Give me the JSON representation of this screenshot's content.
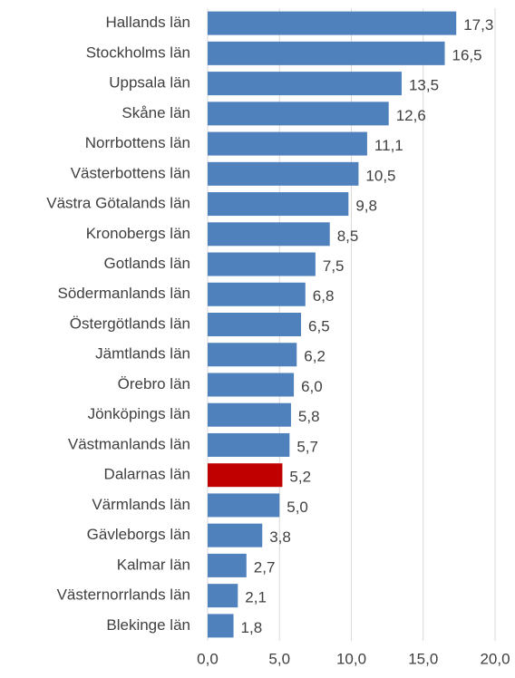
{
  "chart_data": {
    "type": "barh",
    "categories": [
      "Hallands län",
      "Stockholms län",
      "Uppsala län",
      "Skåne län",
      "Norrbottens län",
      "Västerbottens län",
      "Västra Götalands län",
      "Kronobergs län",
      "Gotlands län",
      "Södermanlands län",
      "Östergötlands län",
      "Jämtlands län",
      "Örebro län",
      "Jönköpings län",
      "Västmanlands län",
      "Dalarnas län",
      "Värmlands län",
      "Gävleborgs län",
      "Kalmar län",
      "Västernorrlands län",
      "Blekinge län"
    ],
    "values": [
      17.3,
      16.5,
      13.5,
      12.6,
      11.1,
      10.5,
      9.8,
      8.5,
      7.5,
      6.8,
      6.5,
      6.2,
      6.0,
      5.8,
      5.7,
      5.2,
      5.0,
      3.8,
      2.7,
      2.1,
      1.8
    ],
    "value_labels": [
      "17,3",
      "16,5",
      "13,5",
      "12,6",
      "11,1",
      "10,5",
      "9,8",
      "8,5",
      "7,5",
      "6,8",
      "6,5",
      "6,2",
      "6,0",
      "5,8",
      "5,7",
      "5,2",
      "5,0",
      "3,8",
      "2,7",
      "2,1",
      "1,8"
    ],
    "colors": [
      "#4f81bd",
      "#4f81bd",
      "#4f81bd",
      "#4f81bd",
      "#4f81bd",
      "#4f81bd",
      "#4f81bd",
      "#4f81bd",
      "#4f81bd",
      "#4f81bd",
      "#4f81bd",
      "#4f81bd",
      "#4f81bd",
      "#4f81bd",
      "#4f81bd",
      "#c00000",
      "#4f81bd",
      "#4f81bd",
      "#4f81bd",
      "#4f81bd",
      "#4f81bd"
    ],
    "xlim": [
      0,
      20
    ],
    "xticks": [
      {
        "value": 0,
        "label": "0,0"
      },
      {
        "value": 5,
        "label": "5,0"
      },
      {
        "value": 10,
        "label": "10,0"
      },
      {
        "value": 15,
        "label": "15,0"
      },
      {
        "value": 20,
        "label": "20,0"
      }
    ],
    "grid": true
  }
}
